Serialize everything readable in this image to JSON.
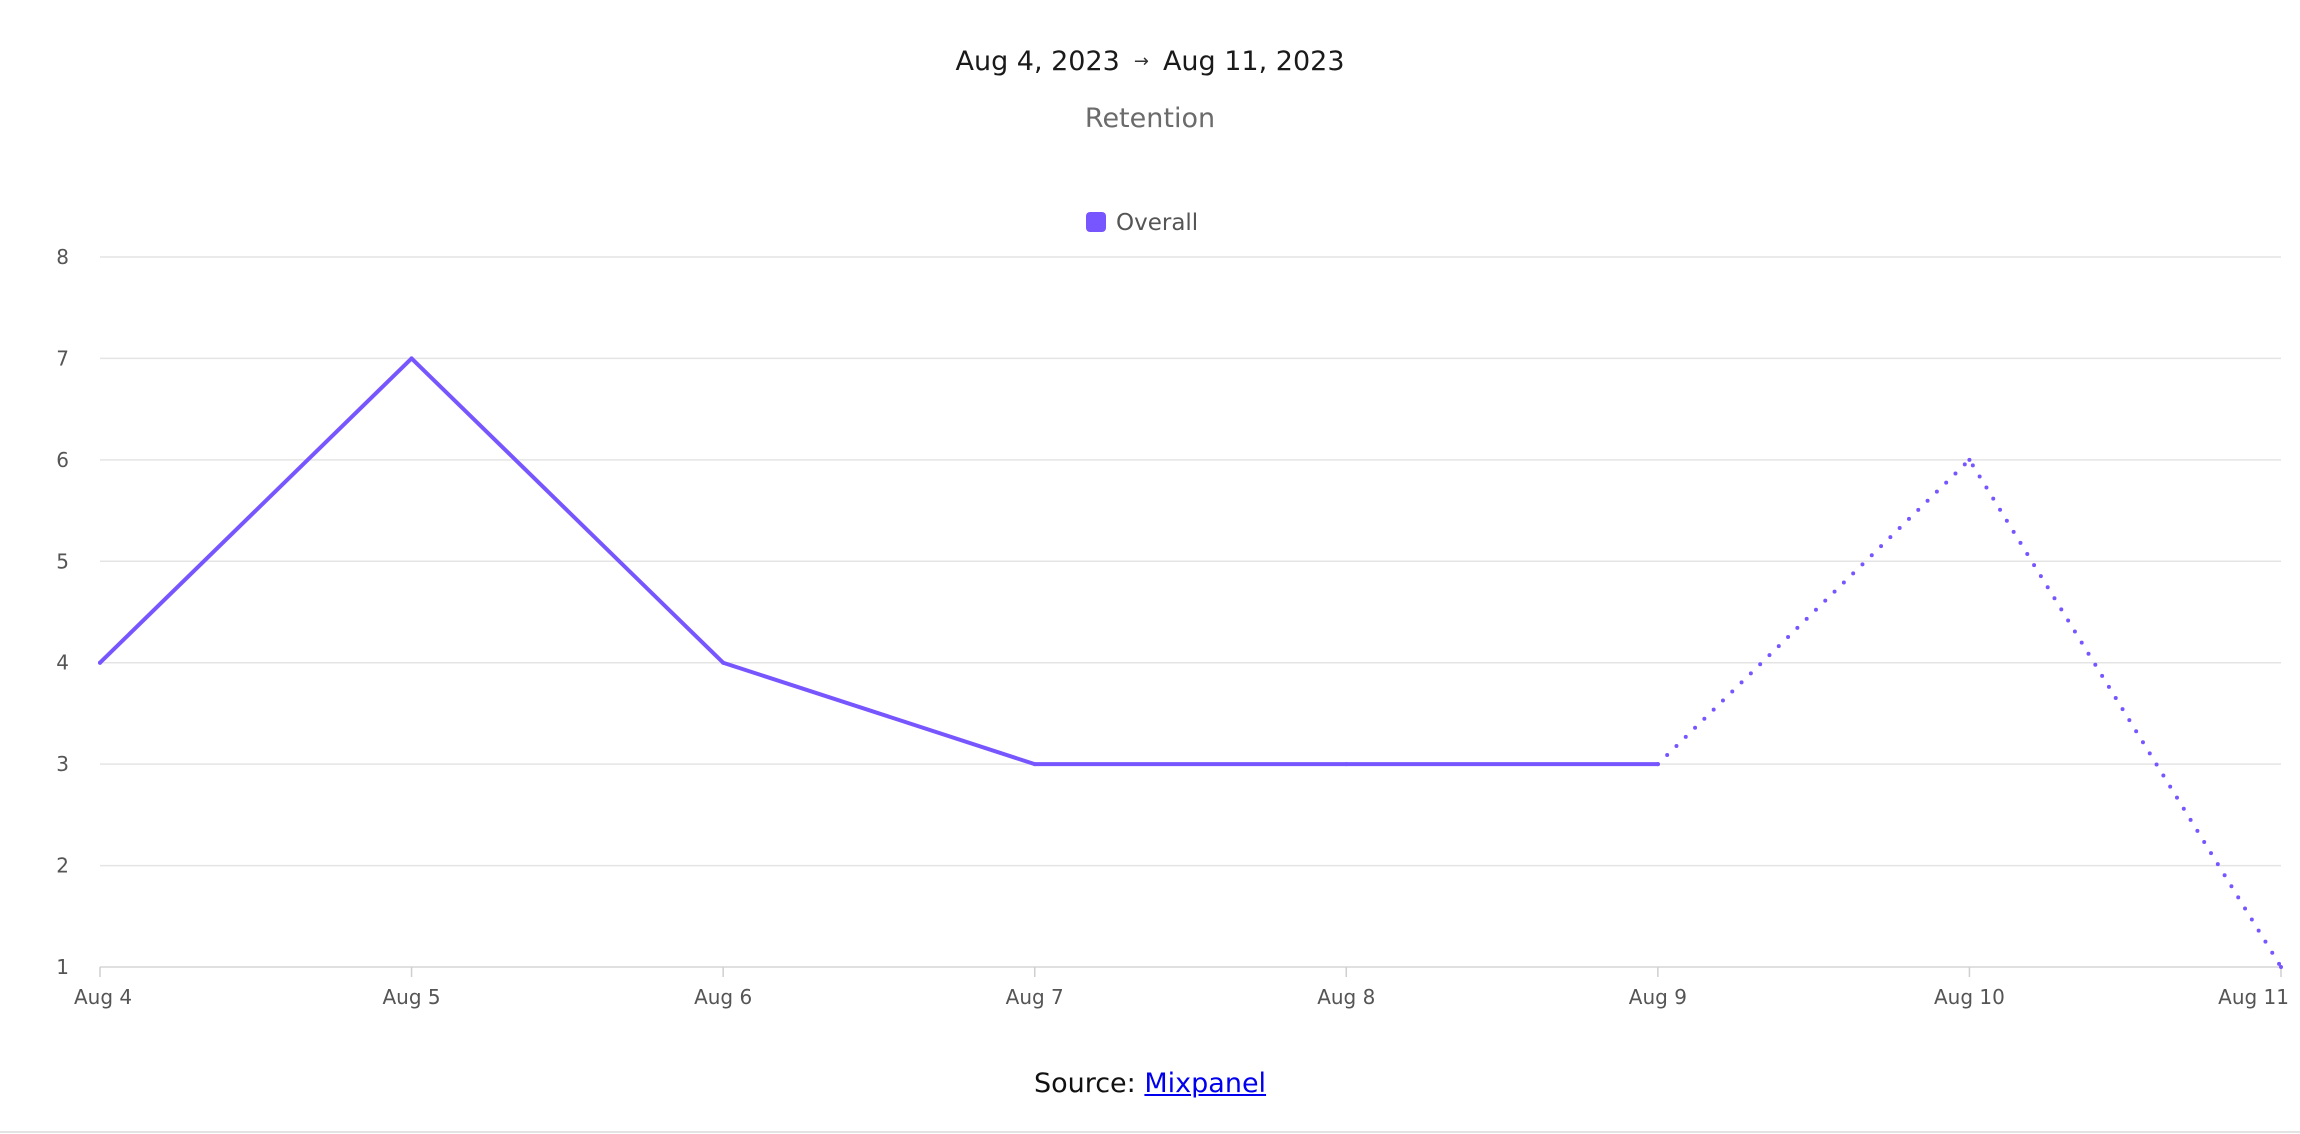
{
  "header": {
    "start_date": "Aug 4, 2023",
    "arrow": "→",
    "end_date": "Aug 11, 2023"
  },
  "footer": {
    "source_label": "Source:",
    "source_link": "Mixpanel"
  },
  "chart_data": {
    "type": "line",
    "title": "Retention",
    "xlabel": "",
    "ylabel": "",
    "categories": [
      "Aug 4",
      "Aug 5",
      "Aug 6",
      "Aug 7",
      "Aug 8",
      "Aug 9",
      "Aug 10",
      "Aug 11"
    ],
    "y_ticks": [
      1,
      2,
      3,
      4,
      5,
      6,
      7,
      8
    ],
    "ylim": [
      1,
      8
    ],
    "grid": true,
    "legend_position": "top-center",
    "series": [
      {
        "name": "Overall",
        "color": "#7856ff",
        "values": [
          4,
          7,
          4,
          3,
          3,
          3,
          6,
          1
        ],
        "solid_through_index": 5,
        "incomplete_style": "dotted"
      }
    ]
  }
}
